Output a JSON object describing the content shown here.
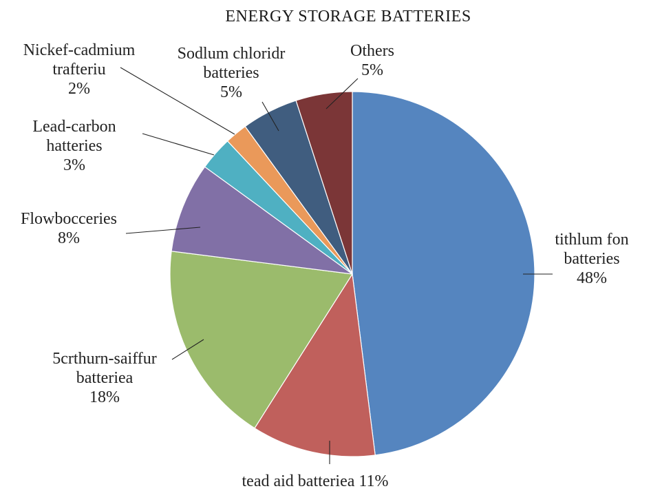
{
  "chart_data": {
    "type": "pie",
    "title": "ENERGY STORAGE BATTERIES",
    "slices": [
      {
        "label_lines": [
          "tithlum fon",
          "batteries",
          "48%"
        ],
        "value": 48,
        "color": "#5585bf"
      },
      {
        "label_lines": [
          "tead aid batteriea 11%"
        ],
        "value": 11,
        "color": "#c0605c"
      },
      {
        "label_lines": [
          "5crthurn-saiffur",
          "batteriea",
          "18%"
        ],
        "value": 18,
        "color": "#9bbb6c"
      },
      {
        "label_lines": [
          "Flowbocceries",
          "8%"
        ],
        "value": 8,
        "color": "#8170a6"
      },
      {
        "label_lines": [
          "Lead-carbon",
          "hatteries",
          "3%"
        ],
        "value": 3,
        "color": "#4fb0c2"
      },
      {
        "label_lines": [
          "Nickef-cadmium",
          "trafteriu",
          "2%"
        ],
        "value": 2,
        "color": "#ea995a"
      },
      {
        "label_lines": [
          "Sodlum chloridr",
          "batteries",
          "5%"
        ],
        "value": 5,
        "color": "#405d7f"
      },
      {
        "label_lines": [
          "Others",
          "5%"
        ],
        "value": 5,
        "color": "#7b3637"
      }
    ],
    "start_angle_deg": 0,
    "direction": "clockwise",
    "legend": "none",
    "data_labels": "outside with leader lines"
  }
}
